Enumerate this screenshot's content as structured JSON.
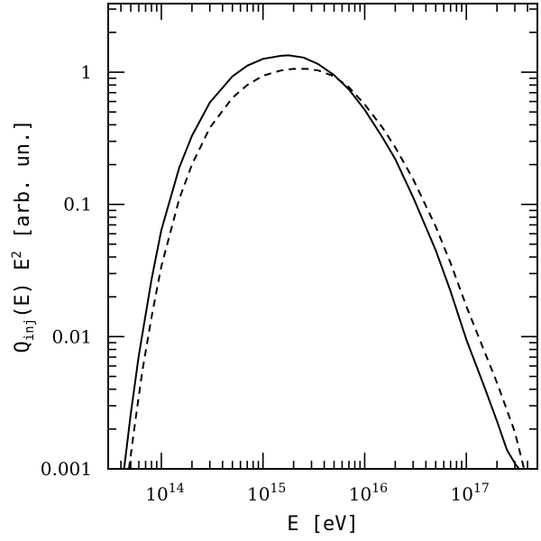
{
  "chart_data": {
    "type": "line",
    "title": "",
    "xlabel": "E [eV]",
    "ylabel": {
      "prefix": "Q",
      "subscript": "inj",
      "middle": "(E) E",
      "superscript": "2",
      "suffix": " [arb. un.]"
    },
    "xscale": "log",
    "yscale": "log",
    "xlim": [
      30000000000000.0,
      5e+17
    ],
    "ylim": [
      0.001,
      3.3
    ],
    "grid": false,
    "legend": "none",
    "x_ticks": [
      {
        "value": 100000000000000.0,
        "base": "10",
        "exp": "14"
      },
      {
        "value": 1000000000000000.0,
        "base": "10",
        "exp": "15"
      },
      {
        "value": 1e+16,
        "base": "10",
        "exp": "16"
      },
      {
        "value": 1e+17,
        "base": "10",
        "exp": "17"
      }
    ],
    "y_ticks": [
      {
        "value": 0.001,
        "label": "0.001"
      },
      {
        "value": 0.01,
        "label": "0.01"
      },
      {
        "value": 0.1,
        "label": "0.1"
      },
      {
        "value": 1,
        "label": "1"
      }
    ],
    "series": [
      {
        "style": "solid",
        "color": "#000000",
        "x": [
          43000000000000.0,
          50000000000000.0,
          60000000000000.0,
          80000000000000.0,
          100000000000000.0,
          150000000000000.0,
          200000000000000.0,
          300000000000000.0,
          500000000000000.0,
          700000000000000.0,
          1000000000000000.0,
          1500000000000000.0,
          1800000000000000.0,
          2500000000000000.0,
          3500000000000000.0,
          5000000000000000.0,
          7000000000000000.0,
          1e+16,
          1.5e+16,
          2e+16,
          3e+16,
          5e+16,
          7e+16,
          1e+17,
          1.5e+17,
          2e+17,
          2.5e+17,
          3e+17,
          3.3e+17
        ],
        "y": [
          0.001,
          0.0026,
          0.0072,
          0.027,
          0.064,
          0.19,
          0.33,
          0.59,
          0.93,
          1.12,
          1.26,
          1.33,
          1.34,
          1.29,
          1.15,
          0.95,
          0.74,
          0.52,
          0.32,
          0.22,
          0.113,
          0.045,
          0.022,
          0.0095,
          0.0042,
          0.0023,
          0.0014,
          0.0011,
          0.001
        ]
      },
      {
        "style": "dashed",
        "color": "#000000",
        "x": [
          48000000000000.0,
          55000000000000.0,
          65000000000000.0,
          80000000000000.0,
          100000000000000.0,
          150000000000000.0,
          200000000000000.0,
          300000000000000.0,
          500000000000000.0,
          700000000000000.0,
          1000000000000000.0,
          1500000000000000.0,
          2000000000000000.0,
          2700000000000000.0,
          3500000000000000.0,
          5000000000000000.0,
          7000000000000000.0,
          1e+16,
          1.5e+16,
          2e+16,
          3e+16,
          5e+16,
          7e+16,
          1e+17,
          1.5e+17,
          2e+17,
          3e+17,
          3.7e+17
        ],
        "y": [
          0.001,
          0.0022,
          0.0055,
          0.014,
          0.034,
          0.11,
          0.2,
          0.38,
          0.64,
          0.8,
          0.94,
          1.03,
          1.06,
          1.06,
          1.03,
          0.93,
          0.77,
          0.57,
          0.38,
          0.27,
          0.155,
          0.068,
          0.036,
          0.017,
          0.0078,
          0.0045,
          0.0019,
          0.001
        ]
      }
    ]
  }
}
